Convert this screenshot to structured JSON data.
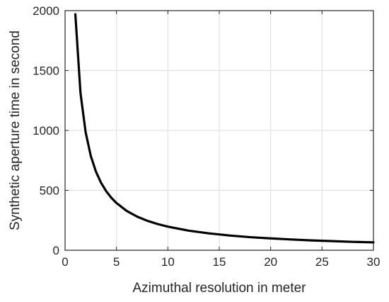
{
  "chart_data": {
    "type": "line",
    "title": "",
    "xlabel": "Azimuthal resolution in meter",
    "ylabel": "Synthetic aperture time in second",
    "xlim": [
      0,
      30
    ],
    "ylim": [
      0,
      2000
    ],
    "xticks": [
      "0",
      "5",
      "10",
      "15",
      "20",
      "25",
      "30"
    ],
    "yticks": [
      "0",
      "500",
      "1000",
      "1500",
      "2000"
    ],
    "grid": true,
    "legend": "none",
    "series": [
      {
        "color": "#000000",
        "x": [
          1,
          1.5,
          2,
          2.5,
          3,
          3.5,
          4,
          4.5,
          5,
          6,
          7,
          8,
          9,
          10,
          12,
          14,
          16,
          18,
          20,
          22,
          24,
          26,
          28,
          30
        ],
        "y": [
          1970,
          1313,
          985,
          788,
          657,
          563,
          493,
          438,
          394,
          328,
          281,
          246,
          219,
          197,
          164,
          141,
          123,
          109,
          99,
          90,
          82,
          76,
          70,
          66
        ]
      }
    ]
  }
}
